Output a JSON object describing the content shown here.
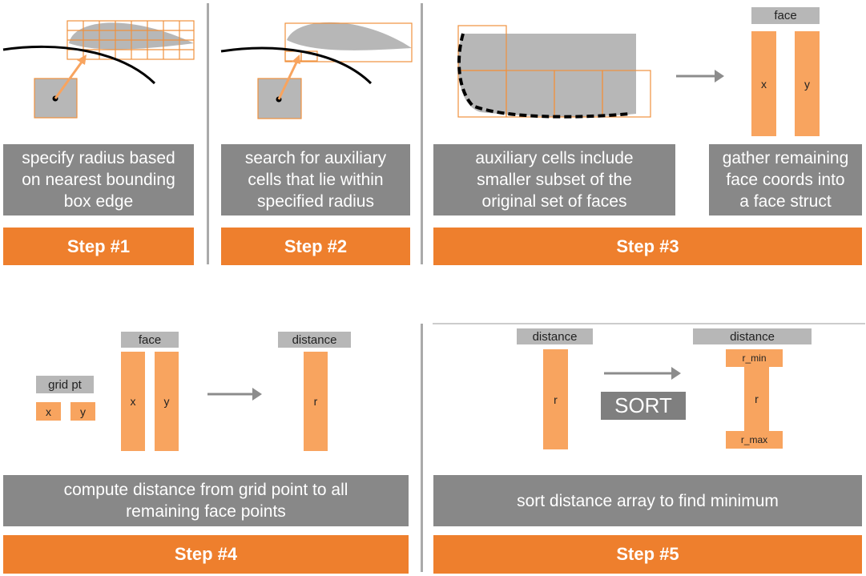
{
  "colors": {
    "orange": "#ee7f2d",
    "light_orange": "#f8a45f",
    "gray": "#888888",
    "light_gray": "#b7b7b7",
    "black": "#000000"
  },
  "step1": {
    "caption_lines": [
      "specify radius based",
      "on nearest bounding",
      "box edge"
    ],
    "label": "Step #1"
  },
  "step2": {
    "caption_lines": [
      "search for auxiliary",
      "cells that lie within",
      "specified radius"
    ],
    "label": "Step #2"
  },
  "step3": {
    "caption_left_lines": [
      "auxiliary cells include",
      "smaller subset of the",
      "original set of faces"
    ],
    "caption_right_lines": [
      "gather remaining",
      "face coords into",
      "a face struct"
    ],
    "face_header": "face",
    "x_label": "x",
    "y_label": "y",
    "label": "Step #3"
  },
  "step4": {
    "grid_header": "grid pt",
    "grid_x": "x",
    "grid_y": "y",
    "face_header": "face",
    "face_x": "x",
    "face_y": "y",
    "distance_header": "distance",
    "r_label": "r",
    "caption_lines": [
      "compute distance from grid point to all",
      "remaining face points"
    ],
    "label": "Step #4"
  },
  "step5": {
    "distance_header_left": "distance",
    "r_left": "r",
    "sort_label": "SORT",
    "distance_header_right": "distance",
    "r_min": "r_min",
    "r_right": "r",
    "r_max": "r_max",
    "caption_lines": [
      "sort distance array to find minimum"
    ],
    "label": "Step #5"
  }
}
